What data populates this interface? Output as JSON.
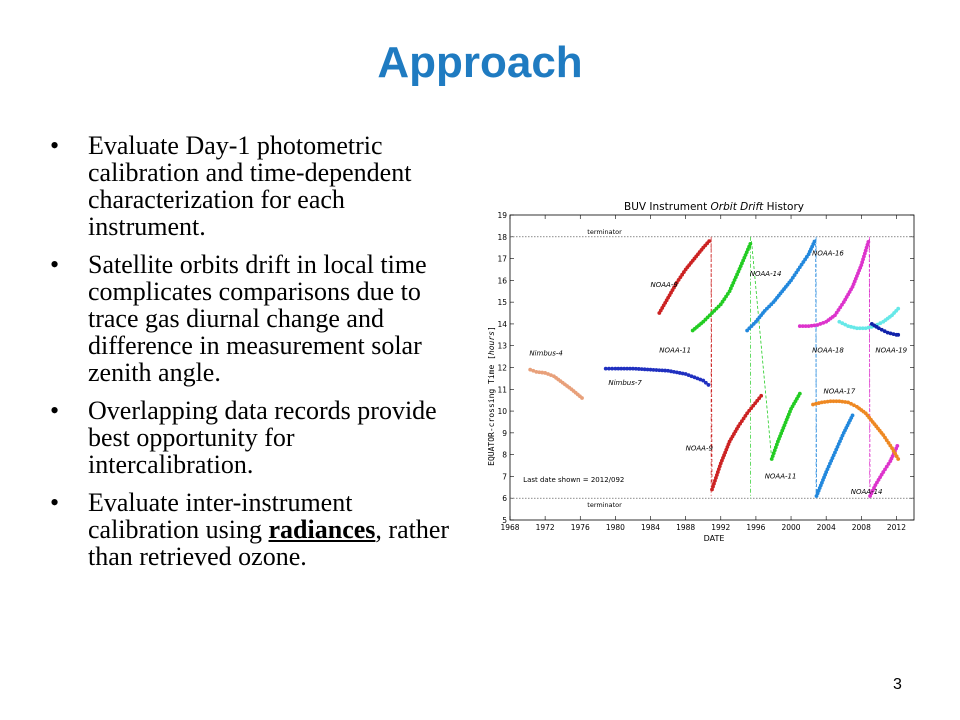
{
  "slide": {
    "title": "Approach",
    "bullets": [
      {
        "text": "Evaluate Day-1 photometric calibration and time-dependent characterization for each instrument."
      },
      {
        "text": "Satellite orbits drift in local time complicates comparisons due to trace gas diurnal change and difference in measurement solar zenith angle."
      },
      {
        "text": "Overlapping data records provide best opportunity for intercalibration."
      },
      {
        "pre": "Evaluate inter-instrument calibration using ",
        "emph": "radiances",
        "post": ", rather than retrieved ozone."
      }
    ],
    "page_number": "3"
  },
  "chart_data": {
    "type": "scatter",
    "title_parts": [
      "BUV Instrument ",
      "Orbit Drift",
      " History"
    ],
    "xlabel": "DATE",
    "ylabel_parts": [
      "EQUATOR-crossing Time  [",
      "hours",
      "]"
    ],
    "xlim": [
      1968,
      2014
    ],
    "ylim": [
      5,
      19
    ],
    "x_ticks": [
      1968,
      1972,
      1976,
      1980,
      1984,
      1988,
      1992,
      1996,
      2000,
      2004,
      2008,
      2012
    ],
    "y_ticks": [
      5,
      6,
      7,
      8,
      9,
      10,
      11,
      12,
      13,
      14,
      15,
      16,
      17,
      18,
      19
    ],
    "terminator_lines": [
      18,
      6
    ],
    "terminator_label": "terminator",
    "note": "Last date shown = 2012/092",
    "series": [
      {
        "name": "Nimbus-4",
        "color": "#e8a07a",
        "x": [
          1970.3,
          1971.0,
          1972.0,
          1973.0,
          1974.0,
          1975.0,
          1976.2
        ],
        "y": [
          11.9,
          11.8,
          11.75,
          11.6,
          11.3,
          11.0,
          10.6
        ]
      },
      {
        "name": "Nimbus-7",
        "color": "#2030c0",
        "x": [
          1978.9,
          1980.0,
          1982.0,
          1984.0,
          1986.0,
          1988.0,
          1990.0,
          1990.6
        ],
        "y": [
          11.95,
          11.95,
          11.95,
          11.9,
          11.85,
          11.7,
          11.4,
          11.2
        ]
      },
      {
        "name": "NOAA-9",
        "color": "#cc2222",
        "x": [
          1985.0,
          1986.0,
          1987.0,
          1988.0,
          1989.0,
          1990.0,
          1990.9,
          1991.0,
          1992.0,
          1993.0,
          1994.0,
          1995.0,
          1996.6
        ],
        "y": [
          14.5,
          15.2,
          15.9,
          16.5,
          17.0,
          17.5,
          17.9,
          6.4,
          7.6,
          8.6,
          9.3,
          9.9,
          10.7
        ]
      },
      {
        "name": "NOAA-11",
        "color": "#22cc22",
        "x": [
          1988.8,
          1990.0,
          1991.0,
          1992.0,
          1993.0,
          1994.0,
          1995.5,
          1997.8,
          1998.5,
          1999.0,
          2000.0,
          2001.0
        ],
        "y": [
          13.7,
          14.1,
          14.5,
          14.9,
          15.5,
          16.4,
          17.8,
          7.8,
          8.6,
          9.1,
          10.1,
          10.8
        ]
      },
      {
        "name": "NOAA-14",
        "color": "#2288dd",
        "x": [
          1995.0,
          1996.0,
          1997.0,
          1998.0,
          1999.0,
          2000.0,
          2001.0,
          2002.0,
          2002.8,
          2002.9,
          2004.0,
          2005.0,
          2006.0,
          2007.0
        ],
        "y": [
          13.7,
          14.1,
          14.6,
          15.0,
          15.5,
          16.0,
          16.6,
          17.2,
          17.9,
          6.1,
          7.2,
          8.1,
          9.0,
          9.8
        ]
      },
      {
        "name": "NOAA-16",
        "color": "#dd33cc",
        "x": [
          2001.0,
          2002.0,
          2003.0,
          2004.0,
          2005.0,
          2006.0,
          2007.0,
          2008.0,
          2008.9,
          2009.0,
          2009.6,
          2010.5,
          2011.3,
          2012.1
        ],
        "y": [
          13.9,
          13.9,
          13.95,
          14.1,
          14.4,
          15.0,
          15.7,
          16.7,
          17.9,
          6.1,
          6.6,
          7.2,
          7.7,
          8.4
        ]
      },
      {
        "name": "NOAA-17",
        "color": "#ee8822",
        "x": [
          2002.5,
          2003.5,
          2004.5,
          2005.5,
          2006.5,
          2007.5,
          2008.5,
          2009.5,
          2010.5,
          2011.5,
          2012.2
        ],
        "y": [
          10.3,
          10.4,
          10.45,
          10.45,
          10.4,
          10.2,
          9.9,
          9.4,
          8.9,
          8.3,
          7.8
        ]
      },
      {
        "name": "NOAA-18",
        "color": "#66e8e8",
        "x": [
          2005.5,
          2006.5,
          2007.5,
          2008.5,
          2009.5,
          2010.5,
          2011.5,
          2012.2
        ],
        "y": [
          14.1,
          13.9,
          13.8,
          13.8,
          13.9,
          14.1,
          14.4,
          14.7
        ]
      },
      {
        "name": "NOAA-19",
        "color": "#1122aa",
        "x": [
          2009.2,
          2010.0,
          2011.0,
          2012.0,
          2012.2
        ],
        "y": [
          14.0,
          13.8,
          13.6,
          13.5,
          13.5
        ]
      }
    ],
    "series_labels": [
      {
        "text": "Nimbus-4",
        "x": 1970.2,
        "y": 12.55
      },
      {
        "text": "Nimbus-7",
        "x": 1979.2,
        "y": 11.2
      },
      {
        "text": "NOAA-9",
        "x": 1984.0,
        "y": 15.7
      },
      {
        "text": "NOAA-11",
        "x": 1985.0,
        "y": 12.7
      },
      {
        "text": "NOAA-14",
        "x": 1995.3,
        "y": 16.2
      },
      {
        "text": "NOAA-16",
        "x": 2002.4,
        "y": 17.15
      },
      {
        "text": "NOAA-18",
        "x": 2002.4,
        "y": 12.7
      },
      {
        "text": "NOAA-19",
        "x": 2009.6,
        "y": 12.7
      },
      {
        "text": "NOAA-9",
        "x": 1988.0,
        "y": 8.2
      },
      {
        "text": "NOAA-11",
        "x": 1997.0,
        "y": 6.9
      },
      {
        "text": "NOAA-17",
        "x": 2003.7,
        "y": 10.8
      },
      {
        "text": "NOAA-14",
        "x": 2006.8,
        "y": 6.2
      }
    ],
    "switch_lines": [
      {
        "color": "#cc2222",
        "x": 1990.9
      },
      {
        "color": "#22cc22",
        "x": 1995.4
      },
      {
        "color": "#2288dd",
        "x": 2002.85
      },
      {
        "color": "#dd33cc",
        "x": 2008.95
      }
    ]
  }
}
